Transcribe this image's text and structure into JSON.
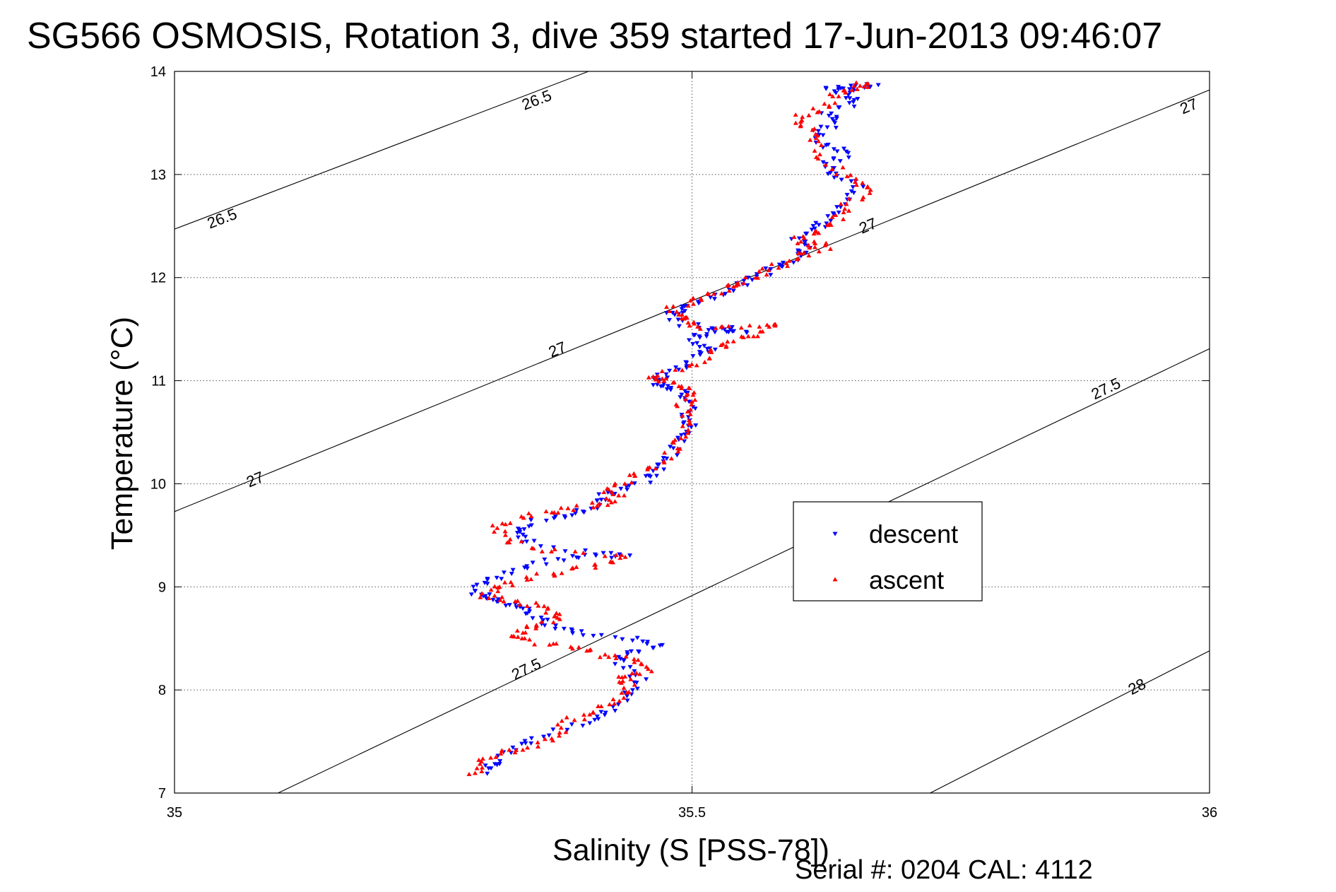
{
  "chart_data": {
    "type": "scatter",
    "title": "SG566 OSMOSIS, Rotation 3, dive 359 started 17-Jun-2013 09:46:07",
    "xlabel": "Salinity (S [PSS-78])",
    "ylabel": "Temperature (°C)",
    "xlim": [
      35,
      36
    ],
    "ylim": [
      7,
      14
    ],
    "xticks": [
      35,
      35.5,
      36
    ],
    "xtick_labels": [
      "35",
      "35.5",
      "36"
    ],
    "yticks": [
      7,
      8,
      9,
      10,
      11,
      12,
      13,
      14
    ],
    "ytick_labels": [
      "7",
      "8",
      "9",
      "10",
      "11",
      "12",
      "13",
      "14"
    ],
    "grid": true,
    "legend_position": "center-right",
    "density_contours": [
      {
        "label": "26.5",
        "points": [
          [
            35.0,
            12.47
          ],
          [
            35.4,
            14.0
          ]
        ]
      },
      {
        "label": "27",
        "points": [
          [
            35.0,
            9.73
          ],
          [
            36.0,
            13.82
          ]
        ]
      },
      {
        "label": "27.5",
        "points": [
          [
            35.1,
            7.0
          ],
          [
            36.0,
            11.31
          ]
        ]
      },
      {
        "label": "28",
        "points": [
          [
            35.73,
            7.0
          ],
          [
            36.0,
            8.38
          ]
        ]
      }
    ],
    "contour_labels": [
      {
        "text": "26.5",
        "x": 35.35,
        "y": 13.72
      },
      {
        "text": "26.5",
        "x": 35.046,
        "y": 12.57
      },
      {
        "text": "27",
        "x": 35.98,
        "y": 13.66
      },
      {
        "text": "27",
        "x": 35.67,
        "y": 12.5
      },
      {
        "text": "27",
        "x": 35.37,
        "y": 11.3
      },
      {
        "text": "27",
        "x": 35.078,
        "y": 10.04
      },
      {
        "text": "27.5",
        "x": 35.9,
        "y": 10.92
      },
      {
        "text": "27.5",
        "x": 35.34,
        "y": 8.2
      },
      {
        "text": "28",
        "x": 35.93,
        "y": 8.03
      }
    ],
    "series": [
      {
        "name": "descent",
        "marker": "triangle-down",
        "color": "#0000ff",
        "path": [
          [
            35.3,
            7.2
          ],
          [
            35.31,
            7.3
          ],
          [
            35.33,
            7.45
          ],
          [
            35.35,
            7.55
          ],
          [
            35.4,
            7.7
          ],
          [
            35.42,
            7.8
          ],
          [
            35.44,
            7.95
          ],
          [
            35.45,
            8.1
          ],
          [
            35.43,
            8.25
          ],
          [
            35.44,
            8.35
          ],
          [
            35.47,
            8.42
          ],
          [
            35.44,
            8.5
          ],
          [
            35.39,
            8.55
          ],
          [
            35.37,
            8.62
          ],
          [
            35.35,
            8.7
          ],
          [
            35.34,
            8.78
          ],
          [
            35.32,
            8.85
          ],
          [
            35.3,
            8.9
          ],
          [
            35.29,
            8.95
          ],
          [
            35.3,
            9.05
          ],
          [
            35.33,
            9.15
          ],
          [
            35.36,
            9.25
          ],
          [
            35.4,
            9.32
          ],
          [
            35.44,
            9.3
          ],
          [
            35.35,
            9.4
          ],
          [
            35.33,
            9.5
          ],
          [
            35.34,
            9.6
          ],
          [
            35.37,
            9.68
          ],
          [
            35.4,
            9.75
          ],
          [
            35.41,
            9.85
          ],
          [
            35.43,
            9.95
          ],
          [
            35.46,
            10.05
          ],
          [
            35.47,
            10.15
          ],
          [
            35.48,
            10.3
          ],
          [
            35.49,
            10.45
          ],
          [
            35.5,
            10.55
          ],
          [
            35.49,
            10.65
          ],
          [
            35.5,
            10.8
          ],
          [
            35.49,
            10.9
          ],
          [
            35.47,
            10.95
          ],
          [
            35.46,
            11.0
          ],
          [
            35.48,
            11.1
          ],
          [
            35.5,
            11.2
          ],
          [
            35.52,
            11.3
          ],
          [
            35.5,
            11.38
          ],
          [
            35.51,
            11.45
          ],
          [
            35.53,
            11.5
          ],
          [
            35.55,
            11.48
          ],
          [
            35.49,
            11.55
          ],
          [
            35.48,
            11.65
          ],
          [
            35.49,
            11.72
          ],
          [
            35.52,
            11.8
          ],
          [
            35.54,
            11.9
          ],
          [
            35.56,
            12.0
          ],
          [
            35.58,
            12.1
          ],
          [
            35.6,
            12.2
          ],
          [
            35.61,
            12.3
          ],
          [
            35.6,
            12.4
          ],
          [
            35.62,
            12.5
          ],
          [
            35.64,
            12.6
          ],
          [
            35.65,
            12.75
          ],
          [
            35.66,
            12.9
          ],
          [
            35.64,
            13.0
          ],
          [
            35.63,
            13.1
          ],
          [
            35.65,
            13.2
          ],
          [
            35.63,
            13.3
          ],
          [
            35.62,
            13.4
          ],
          [
            35.64,
            13.5
          ],
          [
            35.63,
            13.6
          ],
          [
            35.66,
            13.7
          ],
          [
            35.65,
            13.8
          ],
          [
            35.63,
            13.83
          ],
          [
            35.66,
            13.85
          ],
          [
            35.68,
            13.87
          ]
        ]
      },
      {
        "name": "ascent",
        "marker": "triangle-up",
        "color": "#ff0000",
        "path": [
          [
            35.29,
            7.18
          ],
          [
            35.3,
            7.3
          ],
          [
            35.31,
            7.38
          ],
          [
            35.34,
            7.45
          ],
          [
            35.37,
            7.55
          ],
          [
            35.38,
            7.7
          ],
          [
            35.41,
            7.8
          ],
          [
            35.43,
            7.9
          ],
          [
            35.44,
            8.05
          ],
          [
            35.43,
            8.12
          ],
          [
            35.46,
            8.2
          ],
          [
            35.44,
            8.3
          ],
          [
            35.41,
            8.35
          ],
          [
            35.38,
            8.42
          ],
          [
            35.34,
            8.48
          ],
          [
            35.33,
            8.55
          ],
          [
            35.35,
            8.63
          ],
          [
            35.37,
            8.7
          ],
          [
            35.36,
            8.8
          ],
          [
            35.33,
            8.85
          ],
          [
            35.3,
            8.9
          ],
          [
            35.31,
            9.0
          ],
          [
            35.34,
            9.08
          ],
          [
            35.38,
            9.15
          ],
          [
            35.41,
            9.22
          ],
          [
            35.44,
            9.3
          ],
          [
            35.36,
            9.35
          ],
          [
            35.32,
            9.45
          ],
          [
            35.31,
            9.58
          ],
          [
            35.34,
            9.7
          ],
          [
            35.38,
            9.75
          ],
          [
            35.41,
            9.8
          ],
          [
            35.43,
            9.85
          ],
          [
            35.42,
            9.95
          ],
          [
            35.44,
            10.05
          ],
          [
            35.46,
            10.15
          ],
          [
            35.48,
            10.3
          ],
          [
            35.49,
            10.45
          ],
          [
            35.5,
            10.6
          ],
          [
            35.49,
            10.75
          ],
          [
            35.5,
            10.85
          ],
          [
            35.49,
            10.95
          ],
          [
            35.47,
            11.0
          ],
          [
            35.46,
            11.03
          ],
          [
            35.5,
            11.15
          ],
          [
            35.52,
            11.28
          ],
          [
            35.54,
            11.38
          ],
          [
            35.56,
            11.45
          ],
          [
            35.58,
            11.55
          ],
          [
            35.53,
            11.5
          ],
          [
            35.5,
            11.55
          ],
          [
            35.49,
            11.62
          ],
          [
            35.48,
            11.7
          ],
          [
            35.51,
            11.8
          ],
          [
            35.53,
            11.88
          ],
          [
            35.55,
            11.95
          ],
          [
            35.57,
            12.05
          ],
          [
            35.59,
            12.15
          ],
          [
            35.61,
            12.25
          ],
          [
            35.63,
            12.3
          ],
          [
            35.6,
            12.35
          ],
          [
            35.62,
            12.45
          ],
          [
            35.64,
            12.55
          ],
          [
            35.65,
            12.7
          ],
          [
            35.67,
            12.85
          ],
          [
            35.66,
            12.95
          ],
          [
            35.63,
            13.1
          ],
          [
            35.62,
            13.3
          ],
          [
            35.61,
            13.45
          ],
          [
            35.6,
            13.55
          ],
          [
            35.63,
            13.65
          ],
          [
            35.64,
            13.78
          ],
          [
            35.66,
            13.85
          ],
          [
            35.67,
            13.88
          ]
        ]
      }
    ]
  },
  "footer": {
    "serial": "Serial #: 0204  CAL: 4112"
  }
}
